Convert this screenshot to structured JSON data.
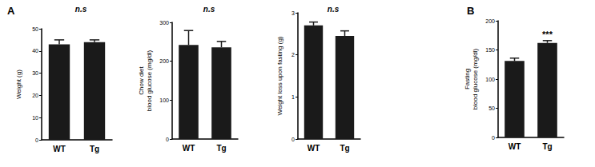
{
  "chart_data": [
    {
      "type": "bar",
      "panel": "A",
      "ylabel": "Weight (g)",
      "annotation": "n.s",
      "categories": [
        "WT",
        "Tg"
      ],
      "values": [
        43,
        44
      ],
      "errors": [
        2,
        1
      ],
      "color": "#1a1a1a",
      "ylim": [
        0,
        50
      ],
      "yticks": [
        0,
        10,
        20,
        30,
        40,
        50
      ],
      "grid": false
    },
    {
      "type": "bar",
      "ylabel": "Chow diet\nblood glucose (mg/dl)",
      "annotation": "n.s",
      "categories": [
        "WT",
        "Tg"
      ],
      "values": [
        242,
        236
      ],
      "errors": [
        37,
        15
      ],
      "color": "#1a1a1a",
      "ylim": [
        0,
        300
      ],
      "yticks": [
        0,
        100,
        200,
        300
      ],
      "grid": false
    },
    {
      "type": "bar",
      "ylabel": "Weight loss upon fasting (g)",
      "annotation": "n.s",
      "categories": [
        "WT",
        "Tg"
      ],
      "values": [
        2.7,
        2.45
      ],
      "errors": [
        0.08,
        0.12
      ],
      "color": "#1a1a1a",
      "ylim": [
        0,
        3
      ],
      "yticks": [
        0,
        1,
        2,
        3
      ],
      "grid": false
    },
    {
      "type": "bar",
      "panel": "B",
      "ylabel": "Fasting\nblood glucose (mg/dl)",
      "annotation": {
        "text": "***",
        "category": "Tg"
      },
      "categories": [
        "WT",
        "Tg"
      ],
      "values": [
        131,
        162
      ],
      "errors": [
        5,
        4
      ],
      "color": "#1a1a1a",
      "ylim": [
        0,
        200
      ],
      "yticks": [
        0,
        50,
        100,
        150,
        200
      ],
      "grid": false
    }
  ]
}
